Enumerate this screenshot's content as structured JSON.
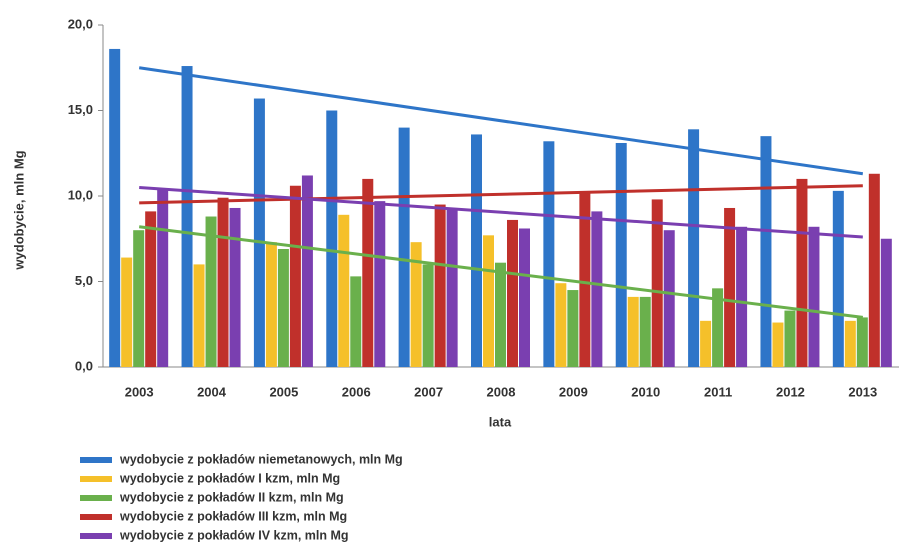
{
  "chart_data": {
    "type": "bar",
    "y_label": "wydobycie, mln Mg",
    "x_label": "lata",
    "categories": [
      "2003",
      "2004",
      "2005",
      "2006",
      "2007",
      "2008",
      "2009",
      "2010",
      "2011",
      "2012",
      "2013"
    ],
    "series": [
      {
        "name": "wydobycie z pokładów niemetanowych, mln Mg",
        "color": "#2e75c8",
        "values": [
          18.6,
          17.6,
          15.7,
          15.0,
          14.0,
          13.6,
          13.2,
          13.1,
          13.9,
          13.5,
          10.3
        ],
        "trend": [
          17.5,
          11.3
        ]
      },
      {
        "name": "wydobycie z pokładów I kzm, mln Mg",
        "color": "#f5c02a",
        "values": [
          6.4,
          6.0,
          7.3,
          8.9,
          7.3,
          7.7,
          4.9,
          4.1,
          2.7,
          2.6,
          2.7
        ]
      },
      {
        "name": "wydobycie z pokładów II kzm, mln Mg",
        "color": "#6ab04c",
        "values": [
          8.0,
          8.8,
          6.9,
          5.3,
          6.0,
          6.1,
          4.5,
          4.1,
          4.6,
          3.3,
          2.9
        ],
        "trend": [
          8.2,
          2.9
        ]
      },
      {
        "name": "wydobycie z pokładów III kzm, mln Mg",
        "color": "#c0302b",
        "values": [
          9.1,
          9.9,
          10.6,
          11.0,
          9.5,
          8.6,
          10.2,
          9.8,
          9.3,
          11.0,
          11.3
        ],
        "trend": [
          9.6,
          10.6
        ]
      },
      {
        "name": "wydobycie z pokładów IV kzm, mln Mg",
        "color": "#7a3fb0",
        "values": [
          10.4,
          9.3,
          11.2,
          9.7,
          9.3,
          8.1,
          9.1,
          8.0,
          8.2,
          8.2,
          7.5
        ],
        "trend": [
          10.5,
          7.6
        ]
      }
    ],
    "ylim": [
      0,
      20
    ],
    "yticks": [
      {
        "value": 0,
        "label": "0,0"
      },
      {
        "value": 5,
        "label": "5,0"
      },
      {
        "value": 10,
        "label": "10,0"
      },
      {
        "value": 15,
        "label": "15,0"
      },
      {
        "value": 20,
        "label": "20,0"
      }
    ],
    "grid": false
  }
}
